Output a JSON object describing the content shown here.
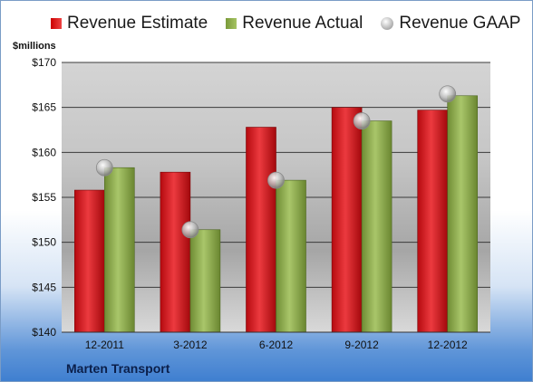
{
  "legend": {
    "estimate": "Revenue Estimate",
    "actual": "Revenue Actual",
    "gaap": "Revenue GAAP"
  },
  "unit_label": "$millions",
  "company": "Marten Transport",
  "colors": {
    "estimate": "#d8141a",
    "actual": "#8fb04f",
    "gaap": "#c8c8c8"
  },
  "chart_data": {
    "type": "bar",
    "categories": [
      "12-2011",
      "3-2012",
      "6-2012",
      "9-2012",
      "12-2012"
    ],
    "series": [
      {
        "name": "Revenue Estimate",
        "values": [
          155.8,
          157.8,
          162.8,
          165.0,
          164.7
        ]
      },
      {
        "name": "Revenue Actual",
        "values": [
          158.3,
          151.4,
          156.9,
          163.5,
          166.3
        ]
      },
      {
        "name": "Revenue GAAP",
        "type": "scatter",
        "values": [
          158.3,
          151.4,
          156.9,
          163.5,
          166.5
        ]
      }
    ],
    "ylabel": "$millions",
    "ylim": [
      140,
      170
    ],
    "yticks": [
      140,
      145,
      150,
      155,
      160,
      165,
      170
    ],
    "ytick_labels": [
      "$140",
      "$145",
      "$150",
      "$155",
      "$160",
      "$165",
      "$170"
    ],
    "grid": true,
    "legend_position": "top"
  }
}
